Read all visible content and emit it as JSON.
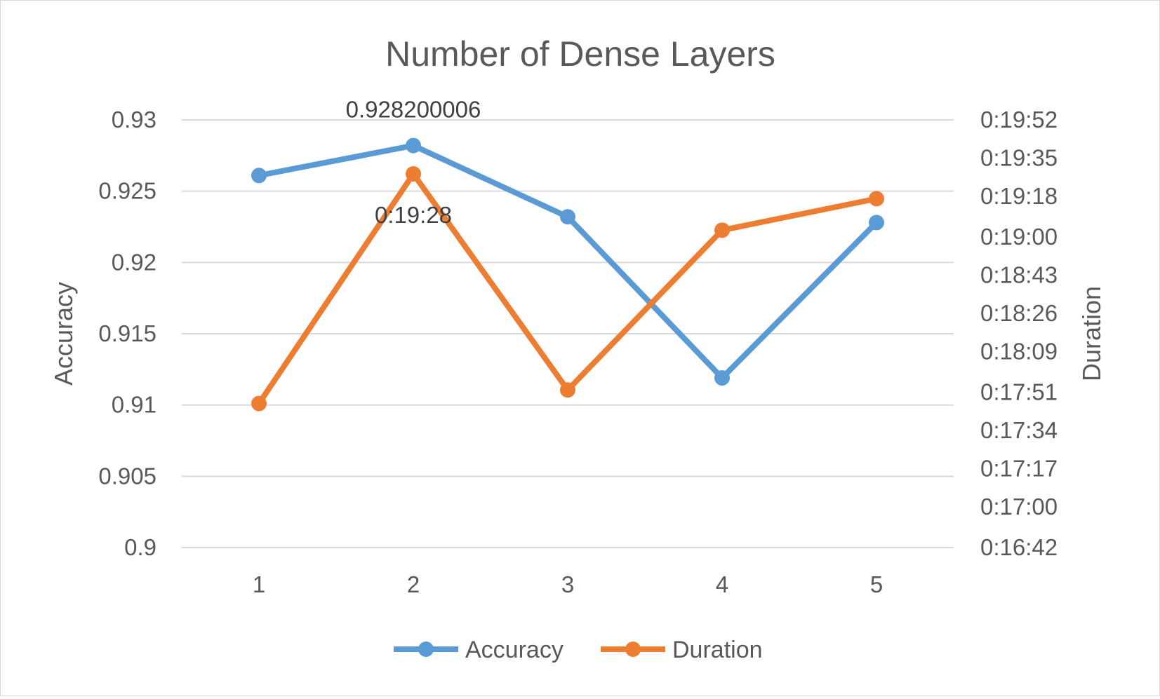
{
  "chart_data": {
    "type": "line",
    "title": "Number of Dense Layers",
    "categories": [
      "1",
      "2",
      "3",
      "4",
      "5"
    ],
    "y_left": {
      "label": "Accuracy",
      "ticks": [
        "0.93",
        "0.925",
        "0.92",
        "0.915",
        "0.91",
        "0.905",
        "0.9"
      ],
      "range": [
        0.9,
        0.93
      ]
    },
    "y_right": {
      "label": "Duration",
      "ticks": [
        "0:19:52",
        "0:19:35",
        "0:19:18",
        "0:19:00",
        "0:18:43",
        "0:18:26",
        "0:18:09",
        "0:17:51",
        "0:17:34",
        "0:17:17",
        "0:17:00",
        "0:16:42"
      ],
      "range": [
        "0:16:42",
        "0:19:52"
      ]
    },
    "series": [
      {
        "name": "Accuracy",
        "axis": "left",
        "color": "#5b9bd5",
        "values": [
          0.9261,
          0.928200006,
          0.9232,
          0.9119,
          0.9228
        ],
        "data_labels": [
          "",
          "0.928200006",
          "",
          "",
          ""
        ]
      },
      {
        "name": "Duration",
        "axis": "right",
        "color": "#ed7d31",
        "values": [
          "0:17:46",
          "0:19:28",
          "0:17:52",
          "0:19:03",
          "0:19:17"
        ],
        "data_labels": [
          "",
          "0:19:28",
          "",
          "",
          ""
        ]
      }
    ],
    "grid": true,
    "legend": "bottom"
  }
}
